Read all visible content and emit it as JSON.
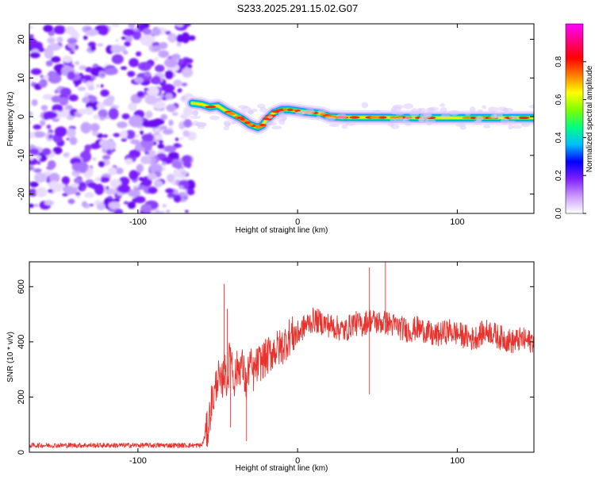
{
  "figure_title": "S233.2025.291.15.02.G07",
  "chart_data": [
    {
      "type": "heatmap",
      "title": "S233.2025.291.15.02.G07",
      "xlabel": "Height of straight line (km)",
      "ylabel": "Frequency (Hz)",
      "xlim": [
        -168,
        148
      ],
      "ylim": [
        -25,
        24
      ],
      "x_ticks": [
        -100,
        0,
        100
      ],
      "y_ticks": [
        -20,
        -10,
        0,
        10,
        20
      ],
      "noise_region_x": [
        -168,
        -66
      ],
      "signal_trace": {
        "x": [
          -66,
          -60,
          -55,
          -50,
          -45,
          -40,
          -35,
          -30,
          -25,
          -22,
          -20,
          -15,
          -10,
          -5,
          0,
          5,
          10,
          15,
          20,
          30,
          50,
          80,
          100,
          148
        ],
        "y": [
          3.5,
          3.2,
          2.5,
          2.8,
          1.5,
          0.5,
          -0.5,
          -2.0,
          -2.8,
          -2.2,
          -1.0,
          1.0,
          1.8,
          1.8,
          1.5,
          1.2,
          1.0,
          0.8,
          0.0,
          -0.2,
          -0.2,
          -0.3,
          -0.3,
          -0.3
        ]
      },
      "colorbar": {
        "label": "Normalized spectral amplitude",
        "range": [
          0.0,
          1.0
        ],
        "ticks": [
          "0.0",
          "0.2",
          "0.4",
          "0.6",
          "0.8"
        ],
        "colors": [
          "#ffffff",
          "#cc99ff",
          "#7f1fff",
          "#0000ff",
          "#00bfff",
          "#00ff7f",
          "#7fff00",
          "#ffff00",
          "#ff7f00",
          "#ff0000",
          "#ff0080",
          "#ff00ff"
        ]
      }
    },
    {
      "type": "line",
      "xlabel": "Height of straight line (km)",
      "ylabel": "SNR (10 * v/v)",
      "xlim": [
        -168,
        148
      ],
      "ylim": [
        0,
        690
      ],
      "x_ticks": [
        -100,
        0,
        100
      ],
      "y_ticks": [
        0,
        200,
        400,
        600
      ],
      "series": [
        {
          "name": "SNR",
          "color": "#e8322d",
          "x": [
            -168,
            -140,
            -110,
            -80,
            -60,
            -56,
            -54,
            -52,
            -50,
            -48,
            -46,
            -44,
            -42,
            -40,
            -38,
            -35,
            -32,
            -30,
            -28,
            -25,
            -20,
            -15,
            -10,
            -5,
            0,
            5,
            10,
            15,
            20,
            25,
            30,
            35,
            40,
            45,
            50,
            55,
            60,
            65,
            70,
            75,
            80,
            85,
            90,
            95,
            100,
            105,
            110,
            115,
            120,
            125,
            130,
            135,
            140,
            145,
            148
          ],
          "y": [
            25,
            25,
            25,
            25,
            25,
            90,
            180,
            210,
            280,
            230,
            300,
            250,
            380,
            260,
            300,
            320,
            240,
            330,
            280,
            320,
            340,
            370,
            380,
            420,
            430,
            460,
            480,
            470,
            460,
            450,
            440,
            470,
            460,
            480,
            470,
            470,
            460,
            450,
            440,
            450,
            440,
            420,
            430,
            440,
            430,
            420,
            410,
            430,
            440,
            420,
            410,
            400,
            410,
            400,
            410
          ]
        }
      ],
      "annotations": {
        "noise_points": [
          {
            "x": -46,
            "y": 610
          },
          {
            "x": -44,
            "y": 520
          },
          {
            "x": -42,
            "y": 90
          },
          {
            "x": -32,
            "y": 40
          },
          {
            "x": 45,
            "y": 210
          },
          {
            "x": 45,
            "y": 670
          },
          {
            "x": 55,
            "y": 690
          }
        ]
      }
    }
  ]
}
